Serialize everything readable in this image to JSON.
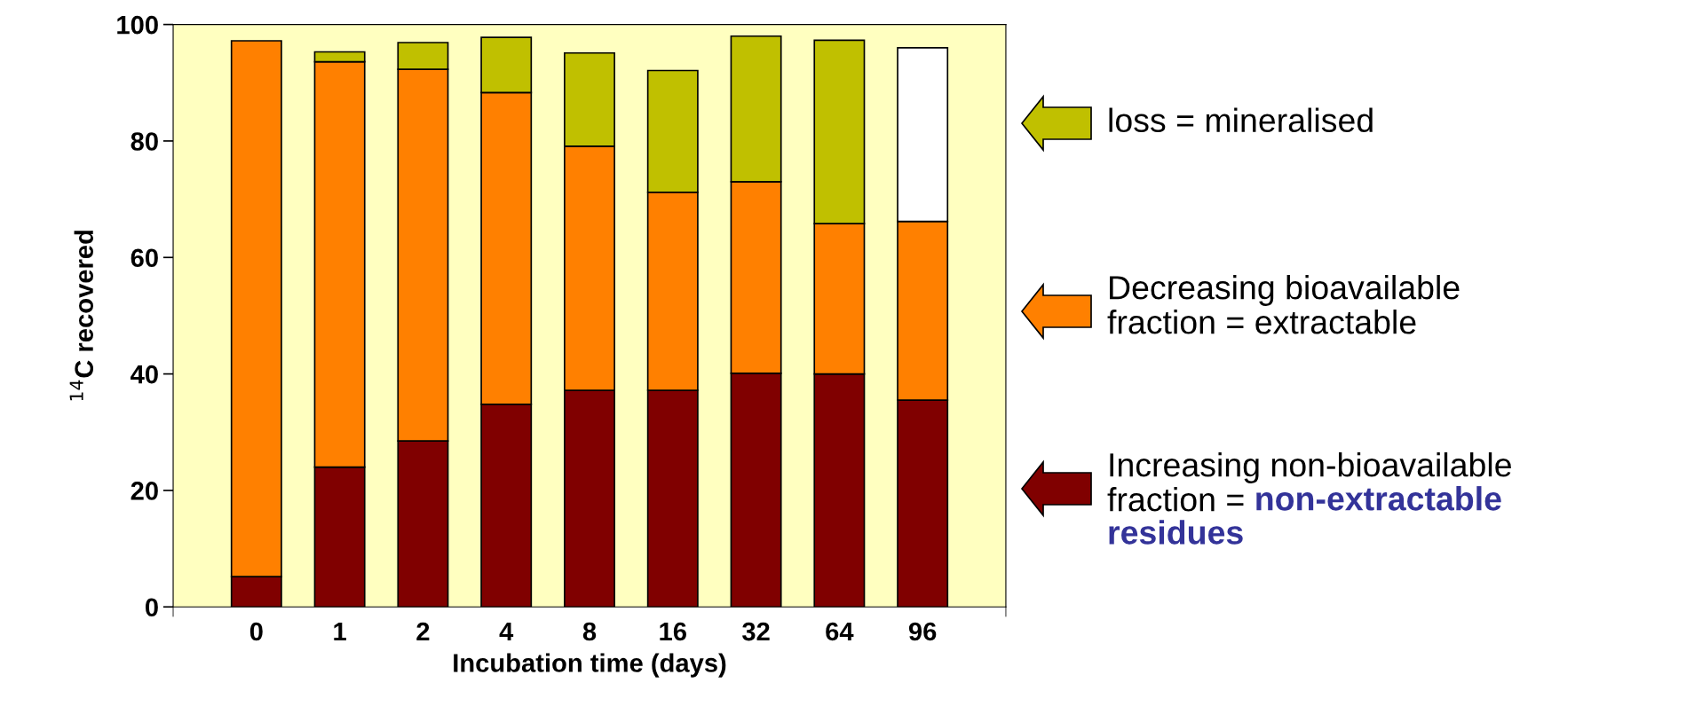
{
  "chart_data": {
    "type": "bar",
    "stacked": true,
    "xlabel": "Incubation time (days)",
    "ylabel": "$^{14}$C recovered",
    "categories": [
      "0",
      "1",
      "2",
      "4",
      "8",
      "16",
      "32",
      "64",
      "96"
    ],
    "series": [
      {
        "color": "#800000",
        "values": [
          5.2,
          24.0,
          28.5,
          34.8,
          37.2,
          37.2,
          40.1,
          40.0,
          35.5
        ]
      },
      {
        "color": "#ff8000",
        "values": [
          92.0,
          69.6,
          63.8,
          53.5,
          41.9,
          34.0,
          32.9,
          25.8,
          30.7
        ]
      },
      {
        "color": "#c0c000",
        "colors": [
          "#c0c000",
          "#c0c000",
          "#c0c000",
          "#c0c000",
          "#c0c000",
          "#c0c000",
          "#c0c000",
          "#c0c000",
          "#ffffff"
        ],
        "values": [
          0,
          1.7,
          4.6,
          9.5,
          16.0,
          20.9,
          25.0,
          31.5,
          29.8
        ]
      }
    ],
    "ylim": [
      0,
      100
    ],
    "yticks": [
      0,
      20,
      40,
      60,
      80,
      100
    ],
    "grid": false,
    "legend": false,
    "annotations": [
      "Increasing non-bioavailable\nfraction =",
      "non-extractable\nresidues",
      "Decreasing bioavailable\nfraction = extractable",
      "loss = mineralised"
    ]
  }
}
